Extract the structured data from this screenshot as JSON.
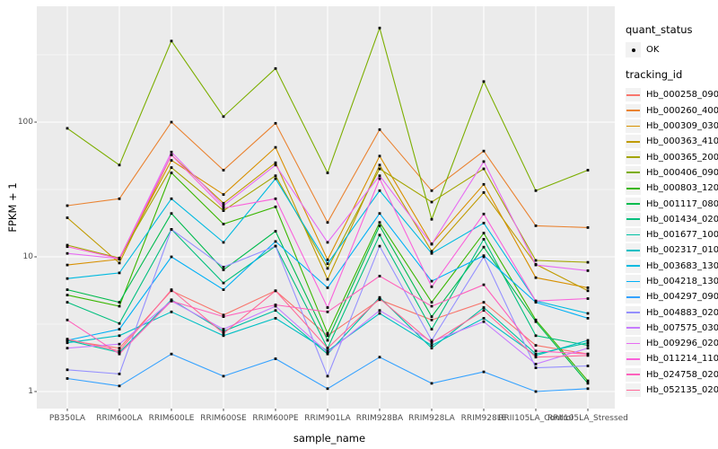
{
  "legend": {
    "quant_status": {
      "title": "quant_status",
      "items": [
        {
          "label": "OK",
          "marker": "black-point"
        }
      ]
    },
    "tracking": {
      "title": "tracking_id"
    }
  },
  "chart_data": {
    "type": "line",
    "title": "",
    "xlabel": "sample_name",
    "ylabel": "FPKM + 1",
    "y_scale": "log10",
    "y_ticks": [
      1,
      10,
      100
    ],
    "y_minor_ticks": [
      3.162,
      31.62,
      316.2
    ],
    "ylim": [
      0.75,
      720
    ],
    "grid": "white gridlines on gray panel",
    "legend_position": "right",
    "panel_bg": "#EBEBEB",
    "grid_color": "#FFFFFF",
    "point_color": "#000000",
    "categories": [
      "PB350LA",
      "RRIM600LA",
      "RRIM600LE",
      "RRIM600SE",
      "RRIM600PE",
      "RRIM901LA",
      "RRIM928BA",
      "RRIM928LA",
      "RRIM928LE",
      "RRII105LA_Control",
      "RRII105LA_Stressed"
    ],
    "series": [
      {
        "name": "Hb_000258_090",
        "color": "#F8766D",
        "values": [
          2.4,
          2.1,
          5.6,
          3.7,
          5.6,
          2.6,
          4.8,
          3.4,
          4.6,
          2.2,
          1.9
        ]
      },
      {
        "name": "Hb_000260_400",
        "color": "#EA8331",
        "values": [
          24,
          27,
          100,
          44,
          98,
          18,
          88,
          31,
          61,
          17,
          16.5
        ]
      },
      {
        "name": "Hb_000309_030",
        "color": "#D89000",
        "values": [
          8.7,
          9.6,
          52,
          29,
          65,
          9.5,
          56,
          12.5,
          34.5,
          7.0,
          5.9
        ]
      },
      {
        "name": "Hb_000363_410",
        "color": "#C09B00",
        "values": [
          19.5,
          9.0,
          57,
          25,
          50,
          6.8,
          48,
          11,
          30,
          8.8,
          5.6
        ]
      },
      {
        "name": "Hb_000365_200",
        "color": "#A3A500",
        "values": [
          12.2,
          9.8,
          46,
          22,
          40,
          8.2,
          45,
          25.5,
          45,
          9.4,
          9.1
        ]
      },
      {
        "name": "Hb_000406_090",
        "color": "#7CAE00",
        "values": [
          90,
          48,
          400,
          110,
          250,
          42,
          500,
          19,
          200,
          31,
          44
        ]
      },
      {
        "name": "Hb_000803_120",
        "color": "#39B600",
        "values": [
          5.2,
          4.3,
          42,
          17.5,
          23.5,
          2.7,
          18,
          4.6,
          15,
          3.4,
          1.2
        ]
      },
      {
        "name": "Hb_001117_080",
        "color": "#00BB4E",
        "values": [
          5.7,
          4.6,
          21,
          8.0,
          15.5,
          2.4,
          17,
          3.6,
          11.8,
          3.3,
          1.15
        ]
      },
      {
        "name": "Hb_001434_020",
        "color": "#00BF7D",
        "values": [
          4.6,
          3.2,
          16,
          6.4,
          12,
          2.1,
          14.5,
          2.9,
          13.5,
          2.6,
          2.2
        ]
      },
      {
        "name": "Hb_001677_100",
        "color": "#00C1A3",
        "values": [
          2.4,
          1.95,
          4.8,
          2.8,
          4.0,
          1.9,
          5.0,
          2.1,
          4.2,
          1.9,
          2.3
        ]
      },
      {
        "name": "Hb_002317_010",
        "color": "#00BFC4",
        "values": [
          2.3,
          2.6,
          3.9,
          2.6,
          3.5,
          2.0,
          3.8,
          2.2,
          3.5,
          1.85,
          2.4
        ]
      },
      {
        "name": "Hb_003683_130",
        "color": "#00BAE0",
        "values": [
          6.9,
          7.6,
          27,
          12.8,
          38,
          8.9,
          31,
          10.6,
          17.8,
          4.7,
          3.8
        ]
      },
      {
        "name": "Hb_004218_130",
        "color": "#00B0F6",
        "values": [
          2.4,
          2.9,
          10,
          5.7,
          13,
          5.9,
          21,
          6.6,
          10.2,
          4.6,
          3.5
        ]
      },
      {
        "name": "Hb_004297_090",
        "color": "#35A2FF",
        "values": [
          1.25,
          1.1,
          1.9,
          1.3,
          1.75,
          1.05,
          1.8,
          1.15,
          1.4,
          1.0,
          1.05
        ]
      },
      {
        "name": "Hb_004883_020",
        "color": "#9590FF",
        "values": [
          1.45,
          1.35,
          16,
          8.4,
          12,
          1.3,
          12,
          2.4,
          10,
          1.5,
          1.55
        ]
      },
      {
        "name": "Hb_007575_030",
        "color": "#C77CFF",
        "values": [
          2.1,
          2.25,
          4.7,
          2.9,
          4.3,
          1.95,
          4.0,
          2.35,
          3.3,
          1.6,
          2.1
        ]
      },
      {
        "name": "Hb_009296_020",
        "color": "#E76BF3",
        "values": [
          10.6,
          9.7,
          60,
          24,
          48,
          12.8,
          40,
          12.4,
          51,
          8.7,
          7.9
        ]
      },
      {
        "name": "Hb_011214_110",
        "color": "#FA62DB",
        "values": [
          11.9,
          9.7,
          57,
          23,
          27,
          4.2,
          38,
          6.0,
          20.8,
          4.7,
          4.9
        ]
      },
      {
        "name": "Hb_024758_020",
        "color": "#FF62BC",
        "values": [
          3.4,
          1.9,
          4.7,
          3.6,
          4.4,
          3.9,
          7.2,
          4.3,
          6.2,
          2.0,
          1.9
        ]
      },
      {
        "name": "Hb_052135_020",
        "color": "#FF6A98",
        "values": [
          2.45,
          2.0,
          5.7,
          2.7,
          5.6,
          2.1,
          4.9,
          2.3,
          4.0,
          1.8,
          1.85
        ]
      }
    ]
  }
}
